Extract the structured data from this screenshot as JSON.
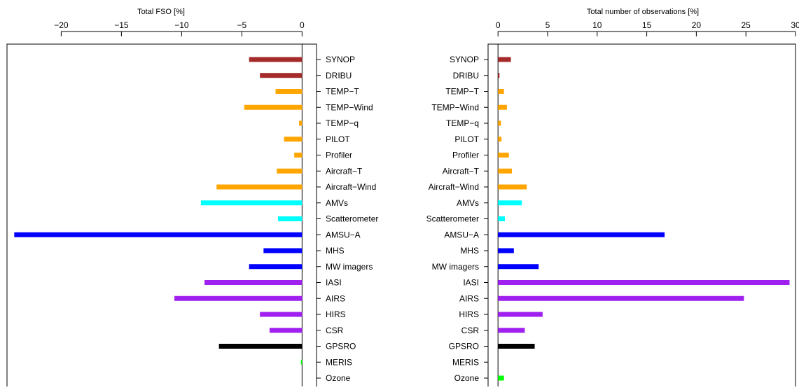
{
  "chart_data": [
    {
      "type": "bar",
      "orientation": "horizontal",
      "title": "Total FSO [%]",
      "xlim": [
        -24.5,
        1.2
      ],
      "xticks": [
        -20,
        -15,
        -10,
        -5,
        0
      ],
      "xtick_labels": [
        "−20",
        "−15",
        "−10",
        "−5",
        "0"
      ],
      "categories": [
        "SYNOP",
        "DRIBU",
        "TEMP−T",
        "TEMP−Wind",
        "TEMP−q",
        "PILOT",
        "Profiler",
        "Aircraft−T",
        "Aircraft−Wind",
        "AMVs",
        "Scatterometer",
        "AMSU−A",
        "MHS",
        "MW imagers",
        "IASI",
        "AIRS",
        "HIRS",
        "CSR",
        "GPSRO",
        "MERIS",
        "Ozone"
      ],
      "values": [
        -4.4,
        -3.5,
        -2.2,
        -4.8,
        -0.25,
        -1.5,
        -0.65,
        -2.1,
        -7.1,
        -8.4,
        -2.0,
        -23.9,
        -3.2,
        -4.4,
        -8.1,
        -10.6,
        -3.5,
        -2.7,
        -6.9,
        -0.1,
        0.0
      ],
      "colors": [
        "#a52a2a",
        "#a52a2a",
        "#ffa500",
        "#ffa500",
        "#ffa500",
        "#ffa500",
        "#ffa500",
        "#ffa500",
        "#ffa500",
        "#00ffff",
        "#00ffff",
        "#0000ff",
        "#0000ff",
        "#0000ff",
        "#a020f0",
        "#a020f0",
        "#a020f0",
        "#a020f0",
        "#000000",
        "#00ff00",
        "#00ff00"
      ],
      "grid": false,
      "legend": "none"
    },
    {
      "type": "bar",
      "orientation": "horizontal",
      "title": "Total number of observations [%]",
      "xlim": [
        -1.0,
        30.0
      ],
      "xticks": [
        0,
        5,
        10,
        15,
        20,
        25,
        30
      ],
      "xtick_labels": [
        "0",
        "5",
        "10",
        "15",
        "20",
        "25",
        "30"
      ],
      "categories": [
        "SYNOP",
        "DRIBU",
        "TEMP−T",
        "TEMP−Wind",
        "TEMP−q",
        "PILOT",
        "Profiler",
        "Aircraft−T",
        "Aircraft−Wind",
        "AMVs",
        "Scatterometer",
        "AMSU−A",
        "MHS",
        "MW imagers",
        "IASI",
        "AIRS",
        "HIRS",
        "CSR",
        "GPSRO",
        "MERIS",
        "Ozone"
      ],
      "values": [
        1.3,
        0.15,
        0.6,
        0.9,
        0.3,
        0.35,
        1.1,
        1.4,
        2.9,
        2.4,
        0.7,
        16.8,
        1.6,
        4.1,
        29.4,
        24.8,
        4.5,
        2.7,
        3.7,
        0.0,
        0.6
      ],
      "colors": [
        "#a52a2a",
        "#a52a2a",
        "#ffa500",
        "#ffa500",
        "#ffa500",
        "#ffa500",
        "#ffa500",
        "#ffa500",
        "#ffa500",
        "#00ffff",
        "#00ffff",
        "#0000ff",
        "#0000ff",
        "#0000ff",
        "#a020f0",
        "#a020f0",
        "#a020f0",
        "#a020f0",
        "#000000",
        "#00ff00",
        "#00ff00"
      ],
      "grid": false,
      "legend": "none"
    }
  ]
}
